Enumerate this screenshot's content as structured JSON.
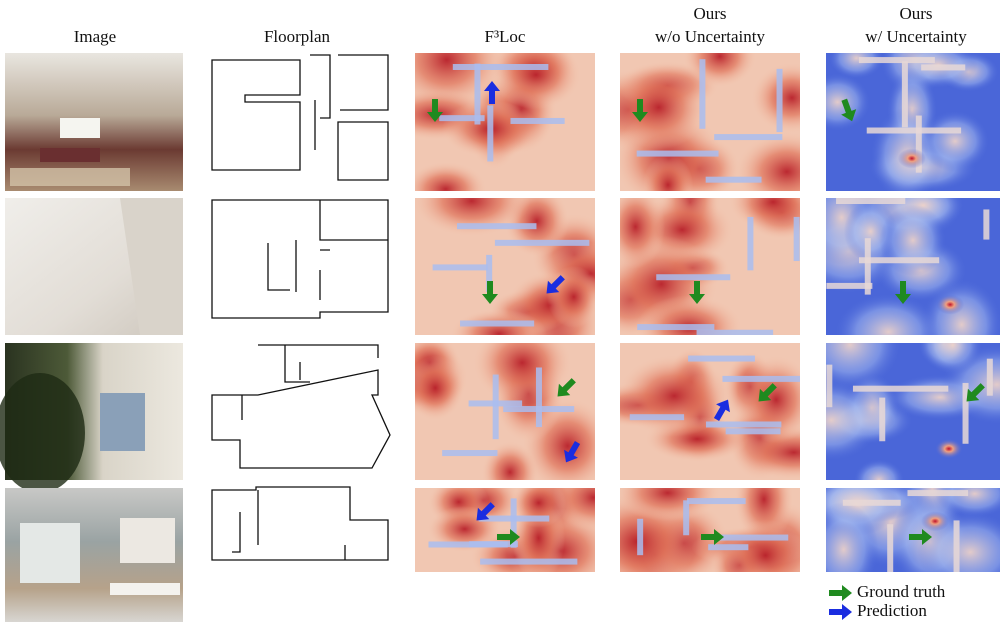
{
  "columns": [
    {
      "lines": [
        "Image"
      ]
    },
    {
      "lines": [
        "Floorplan"
      ]
    },
    {
      "lines": [
        "F³Loc"
      ]
    },
    {
      "lines": [
        "Ours",
        "w/o Uncertainty"
      ]
    },
    {
      "lines": [
        "Ours",
        "w/ Uncertainty"
      ]
    }
  ],
  "legend": [
    {
      "label": "Ground truth"
    },
    {
      "label": "Prediction"
    }
  ]
}
